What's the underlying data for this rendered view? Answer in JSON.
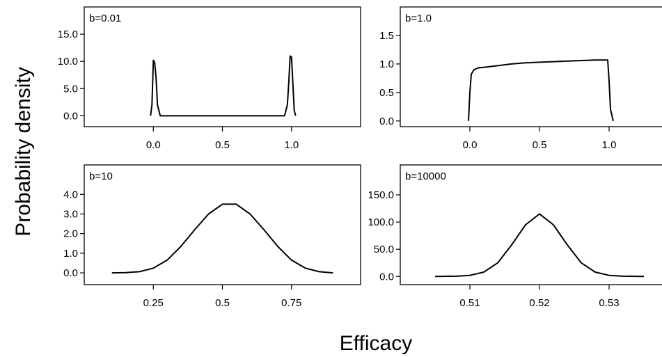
{
  "figure": {
    "xlabel": "Efficacy",
    "ylabel": "Probability density"
  },
  "chart_data": [
    {
      "type": "line",
      "panel_label": "b=0.01",
      "xlim": [
        -0.5,
        1.5
      ],
      "ylim": [
        -2,
        20
      ],
      "xticks": [
        0.0,
        0.5,
        1.0
      ],
      "xtick_labels": [
        "0.0",
        "0.5",
        "1.0"
      ],
      "yticks": [
        0,
        5,
        10,
        15
      ],
      "ytick_labels": [
        "0.0",
        "5.0",
        "10.0",
        "15.0"
      ],
      "grid": false,
      "series": [
        {
          "x": [
            -0.02,
            -0.01,
            0.0,
            0.01,
            0.02,
            0.03,
            0.05,
            0.1,
            0.5,
            0.9,
            0.95,
            0.97,
            0.98,
            0.99,
            1.0,
            1.01,
            1.02,
            1.03
          ],
          "y": [
            0,
            2,
            10.2,
            9.8,
            7,
            2,
            0,
            0,
            0,
            0,
            0,
            2,
            6,
            11,
            10.8,
            6,
            1,
            0
          ]
        }
      ]
    },
    {
      "type": "line",
      "panel_label": "b=1.0",
      "xlim": [
        -0.5,
        1.5
      ],
      "ylim": [
        -0.1,
        2.0
      ],
      "xticks": [
        0.0,
        0.5,
        1.0
      ],
      "xtick_labels": [
        "0.0",
        "0.5",
        "1.0"
      ],
      "yticks": [
        0.0,
        0.5,
        1.0,
        1.5
      ],
      "ytick_labels": [
        "0.0",
        "0.5",
        "1.0",
        "1.5"
      ],
      "grid": false,
      "series": [
        {
          "x": [
            -0.01,
            0.0,
            0.01,
            0.03,
            0.06,
            0.1,
            0.2,
            0.3,
            0.4,
            0.5,
            0.6,
            0.7,
            0.8,
            0.9,
            0.95,
            0.99,
            1.0,
            1.01,
            1.03
          ],
          "y": [
            0,
            0.5,
            0.82,
            0.9,
            0.93,
            0.94,
            0.97,
            1.0,
            1.02,
            1.03,
            1.04,
            1.05,
            1.06,
            1.07,
            1.07,
            1.07,
            0.7,
            0.2,
            0
          ]
        }
      ]
    },
    {
      "type": "line",
      "panel_label": "b=10",
      "xlim": [
        0.0,
        1.0
      ],
      "ylim": [
        -0.6,
        5.5
      ],
      "xticks": [
        0.25,
        0.5,
        0.75
      ],
      "xtick_labels": [
        "0.25",
        "0.5",
        "0.75"
      ],
      "yticks": [
        0,
        1,
        2,
        3,
        4
      ],
      "ytick_labels": [
        "0.0",
        "1.0",
        "2.0",
        "3.0",
        "4.0"
      ],
      "grid": false,
      "series": [
        {
          "x": [
            0.1,
            0.15,
            0.2,
            0.25,
            0.3,
            0.35,
            0.4,
            0.45,
            0.5,
            0.55,
            0.6,
            0.65,
            0.7,
            0.75,
            0.8,
            0.85,
            0.9
          ],
          "y": [
            0,
            0.01,
            0.06,
            0.24,
            0.65,
            1.35,
            2.2,
            3.0,
            3.5,
            3.5,
            3.0,
            2.2,
            1.35,
            0.65,
            0.24,
            0.06,
            0
          ]
        }
      ]
    },
    {
      "type": "line",
      "panel_label": "b=10000",
      "xlim": [
        0.5,
        0.54
      ],
      "ylim": [
        -15,
        205
      ],
      "xticks": [
        0.51,
        0.52,
        0.53,
        0.54
      ],
      "xtick_labels": [
        "0.51",
        "0.52",
        "0.53",
        ""
      ],
      "yticks": [
        0,
        50,
        100,
        150
      ],
      "ytick_labels": [
        "0.0",
        "50.0",
        "100.0",
        "150.0"
      ],
      "grid": false,
      "series": [
        {
          "x": [
            0.505,
            0.508,
            0.51,
            0.512,
            0.514,
            0.516,
            0.518,
            0.52,
            0.522,
            0.524,
            0.526,
            0.528,
            0.53,
            0.532,
            0.535
          ],
          "y": [
            0,
            0.5,
            2,
            8,
            25,
            58,
            95,
            115,
            95,
            58,
            25,
            8,
            2,
            0.5,
            0
          ]
        }
      ]
    }
  ]
}
